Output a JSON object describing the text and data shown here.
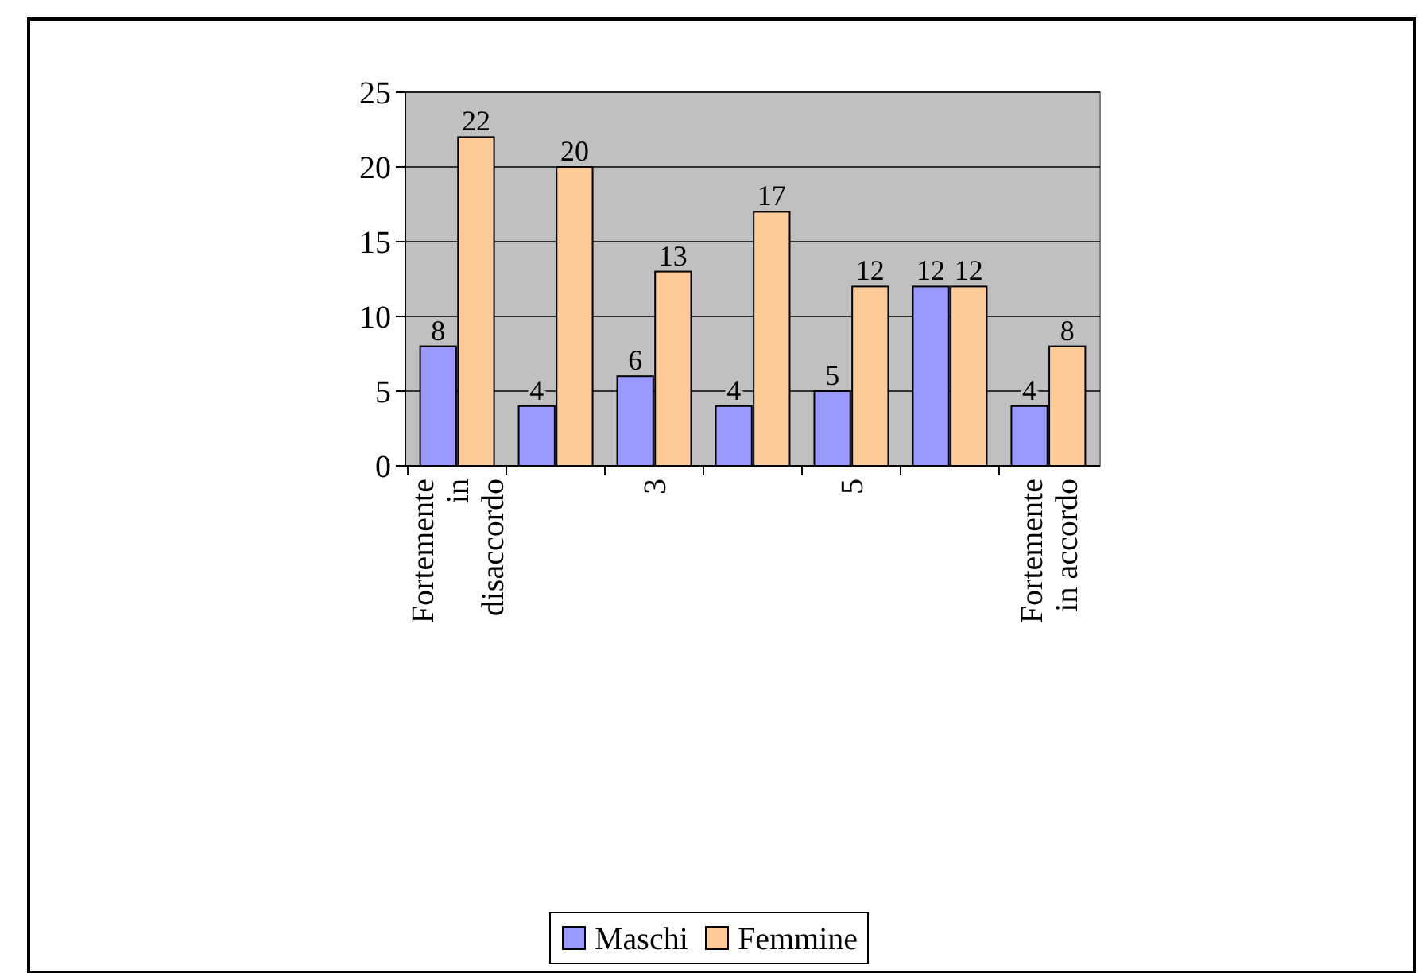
{
  "chart_data": {
    "type": "bar",
    "categories": [
      "Fortemente in disaccordo",
      null,
      "3",
      null,
      "5",
      null,
      "Fortemente in accordo"
    ],
    "series": [
      {
        "name": "Maschi",
        "color": "#9999ff",
        "values": [
          8,
          4,
          6,
          4,
          5,
          12,
          4
        ]
      },
      {
        "name": "Femmine",
        "color": "#ffcc99",
        "values": [
          22,
          20,
          13,
          17,
          12,
          12,
          8
        ]
      }
    ],
    "ylim": [
      0,
      25
    ],
    "yticks": [
      0,
      5,
      10,
      15,
      20,
      25
    ],
    "grid": "y",
    "data_labels": true,
    "legend": "bottom"
  }
}
